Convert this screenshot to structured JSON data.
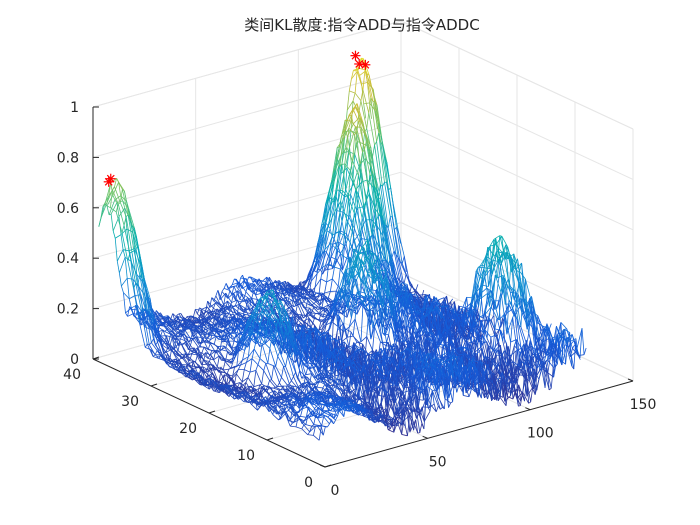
{
  "chart_data": {
    "type": "surface-mesh",
    "title": "类间KL散度:指令ADD与指令ADDC",
    "x_axis": {
      "ticks": [
        "0",
        "50",
        "100",
        "150"
      ],
      "range": [
        0,
        150
      ]
    },
    "y_axis": {
      "ticks": [
        "0",
        "10",
        "20",
        "30",
        "40"
      ],
      "range": [
        0,
        40
      ]
    },
    "z_axis": {
      "ticks": [
        "0",
        "0.2",
        "0.4",
        "0.6",
        "0.8",
        "1"
      ],
      "range": [
        0,
        1
      ]
    },
    "grid": "on",
    "colormap": "parula",
    "peak_markers": {
      "marker": "*",
      "color": "#ff0000",
      "points": [
        {
          "x": 2,
          "y": 38,
          "z": 0.72
        },
        {
          "x": 3,
          "y": 38,
          "z": 0.73
        },
        {
          "x": 125,
          "y": 39,
          "z": 0.93
        },
        {
          "x": 124,
          "y": 38,
          "z": 0.91
        },
        {
          "x": 127,
          "y": 38,
          "z": 0.9
        }
      ]
    },
    "surface_features": [
      {
        "x": 3,
        "y": 37,
        "z": 0.72
      },
      {
        "x": 125,
        "y": 38,
        "z": 0.92
      },
      {
        "x": 105,
        "y": 32,
        "z": 0.85
      },
      {
        "x": 82,
        "y": 22,
        "z": 0.45
      },
      {
        "x": 120,
        "y": 12,
        "z": 0.5
      },
      {
        "x": 30,
        "y": 20,
        "z": 0.4
      }
    ]
  }
}
